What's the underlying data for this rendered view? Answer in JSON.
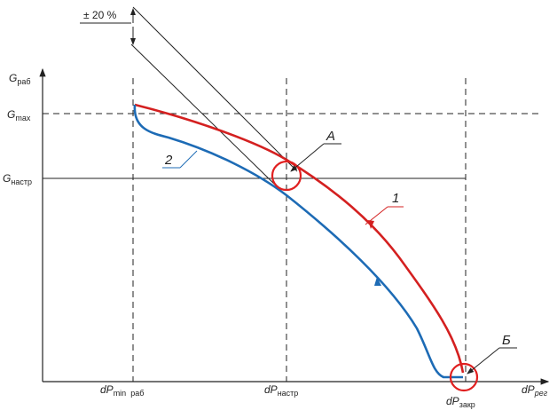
{
  "labels": {
    "g_rab": {
      "main": "G",
      "sub": "раб"
    },
    "g_max": {
      "main": "G",
      "sub": "max"
    },
    "g_nastr": {
      "main": "G",
      "sub": "настр"
    },
    "dp_min": {
      "main": "dP",
      "sub": "min  раб"
    },
    "dp_nastr": {
      "main": "dP",
      "sub": "настр"
    },
    "dp_zakr": {
      "main": "dP",
      "sub": "закр"
    },
    "dp_reg": {
      "main": "dP",
      "sub": "рег"
    },
    "tolerance": "± 20 %",
    "point_a": "А",
    "point_b": "Б",
    "curve_1": "1",
    "curve_2": "2"
  }
}
